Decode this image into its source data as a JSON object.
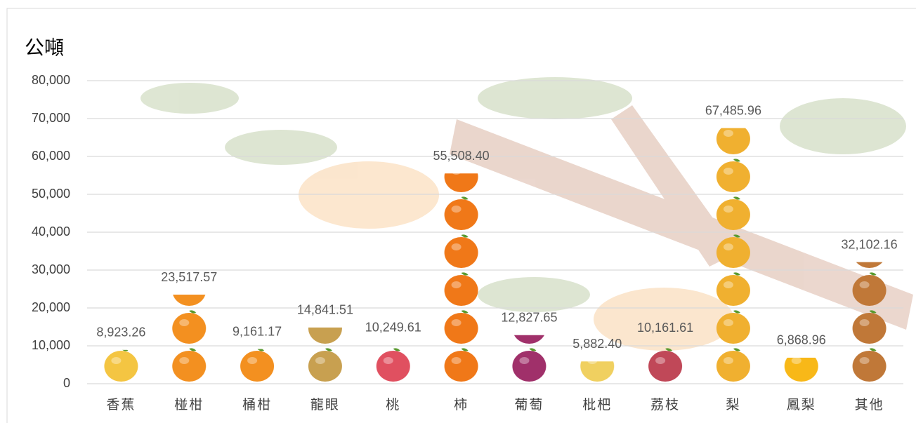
{
  "chart_data": {
    "type": "pictograph",
    "title": "公噸",
    "categories": [
      "香蕉",
      "椪柑",
      "桶柑",
      "龍眼",
      "桃",
      "柿",
      "葡萄",
      "枇杷",
      "荔枝",
      "梨",
      "鳳梨",
      "其他"
    ],
    "values": [
      8923.26,
      23517.57,
      9161.17,
      14841.51,
      10249.61,
      55508.4,
      12827.65,
      5882.4,
      10161.61,
      67485.96,
      6868.96,
      32102.16
    ],
    "value_labels": [
      "8,923.26",
      "23,517.57",
      "9,161.17",
      "14,841.51",
      "10,249.61",
      "55,508.40",
      "12,827.65",
      "5,882.40",
      "10,161.61",
      "67,485.96",
      "6,868.96",
      "32,102.16"
    ],
    "colors": [
      "#f4c542",
      "#f39020",
      "#f39020",
      "#c8a050",
      "#e05060",
      "#f07818",
      "#a0306a",
      "#f0d060",
      "#c04858",
      "#f0b030",
      "#f8b818",
      "#c07838"
    ],
    "ylim": [
      0,
      80000
    ],
    "yticks": [
      0,
      {
        "value": 10000,
        "label": "10,000"
      },
      {
        "value": 20000,
        "label": "20,000"
      },
      {
        "value": 30000,
        "label": "30,000"
      },
      {
        "value": 40000,
        "label": "40,000"
      },
      {
        "value": 50000,
        "label": "50,000"
      },
      {
        "value": 60000,
        "label": "60,000"
      },
      {
        "value": 70000,
        "label": "70,000"
      },
      {
        "value": 80000,
        "label": "80,000"
      }
    ],
    "grid": true
  }
}
